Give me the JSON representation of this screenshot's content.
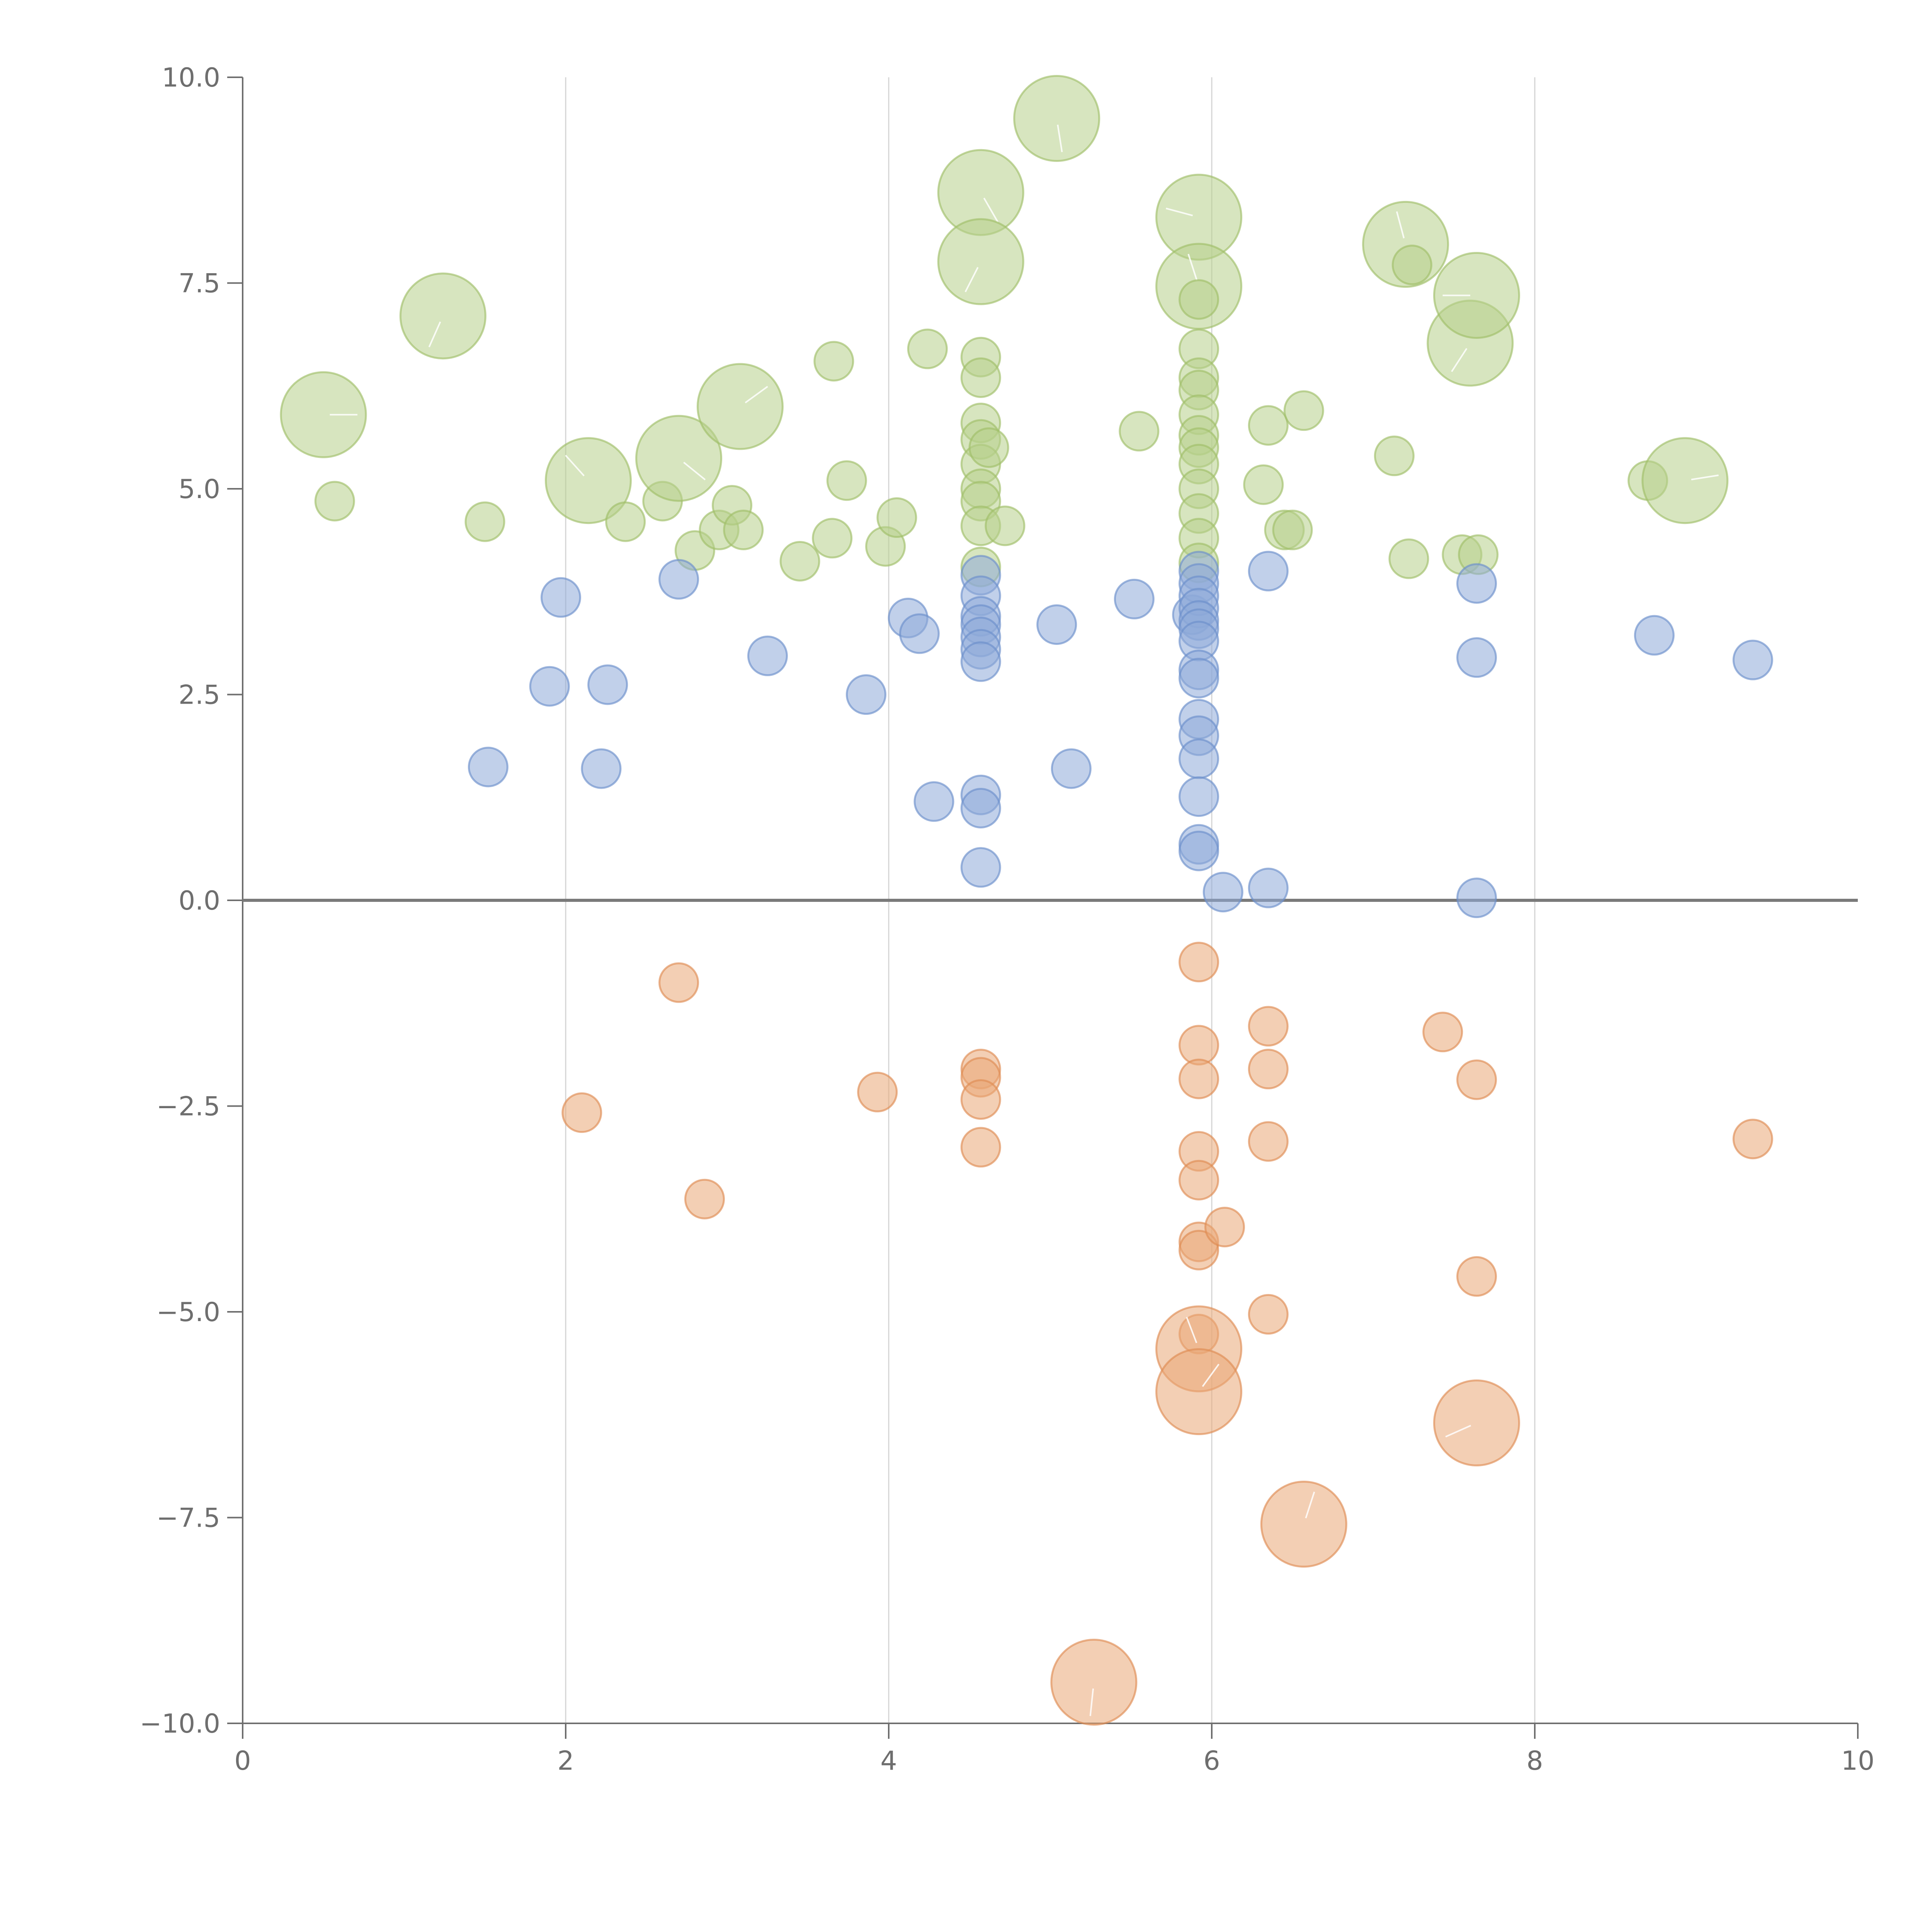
{
  "chart_data": {
    "type": "scatter",
    "variant": "bubble",
    "title": "",
    "xlabel": "",
    "ylabel": "",
    "xlim": [
      0,
      10
    ],
    "ylim": [
      -10,
      10
    ],
    "x_ticks": [
      "0",
      "2",
      "4",
      "6",
      "8",
      "10"
    ],
    "x_tick_values": [
      0,
      2,
      4,
      6,
      8,
      10
    ],
    "y_ticks": [
      "10.0",
      "7.5",
      "5.0",
      "2.5",
      "0.0",
      "−2.5",
      "−5.0",
      "−7.5",
      "−10.0"
    ],
    "y_tick_values": [
      10,
      7.5,
      5,
      2.5,
      0,
      -2.5,
      -5,
      -7.5,
      -10
    ],
    "grid": "vertical",
    "zero_line": true,
    "legend": "none",
    "size_scale": {
      "small": 1,
      "large": 2.2
    },
    "series": [
      {
        "name": "green",
        "color": "#b7cf8a",
        "stroke": "#9fbe68",
        "points": [
          [
            0.5,
            5.9,
            2.2
          ],
          [
            0.57,
            4.85,
            1
          ],
          [
            1.24,
            7.1,
            2.2
          ],
          [
            1.5,
            4.6,
            1
          ],
          [
            2.14,
            5.1,
            2.2
          ],
          [
            2.37,
            4.6,
            1
          ],
          [
            2.6,
            4.85,
            1
          ],
          [
            2.7,
            5.37,
            2.2
          ],
          [
            2.8,
            4.25,
            1
          ],
          [
            2.95,
            4.5,
            1
          ],
          [
            3.03,
            4.8,
            1
          ],
          [
            3.1,
            4.5,
            1
          ],
          [
            3.08,
            6.0,
            2.2
          ],
          [
            3.45,
            4.12,
            1
          ],
          [
            3.65,
            4.4,
            1
          ],
          [
            3.66,
            6.55,
            1
          ],
          [
            3.74,
            5.1,
            1
          ],
          [
            3.98,
            4.3,
            1
          ],
          [
            4.05,
            4.65,
            1
          ],
          [
            4.24,
            6.7,
            1
          ],
          [
            4.57,
            8.6,
            2.2
          ],
          [
            4.57,
            7.76,
            2.2
          ],
          [
            4.57,
            6.6,
            1
          ],
          [
            4.57,
            6.35,
            1
          ],
          [
            4.57,
            5.8,
            1
          ],
          [
            4.57,
            5.6,
            1
          ],
          [
            4.57,
            5.3,
            1
          ],
          [
            4.57,
            5.0,
            1
          ],
          [
            4.57,
            4.85,
            1
          ],
          [
            4.57,
            4.55,
            1
          ],
          [
            4.57,
            4.05,
            1
          ],
          [
            4.62,
            5.5,
            1
          ],
          [
            4.72,
            4.55,
            1
          ],
          [
            5.04,
            9.5,
            2.2
          ],
          [
            5.55,
            5.7,
            1
          ],
          [
            5.92,
            8.3,
            2.2
          ],
          [
            5.92,
            7.46,
            2.2
          ],
          [
            5.92,
            7.3,
            1
          ],
          [
            5.92,
            6.7,
            1
          ],
          [
            5.92,
            6.35,
            1
          ],
          [
            5.92,
            6.2,
            1
          ],
          [
            5.92,
            5.9,
            1
          ],
          [
            5.92,
            5.65,
            1
          ],
          [
            5.92,
            5.5,
            1
          ],
          [
            5.92,
            5.3,
            1
          ],
          [
            5.92,
            5.0,
            1
          ],
          [
            5.92,
            4.7,
            1
          ],
          [
            5.92,
            4.4,
            1
          ],
          [
            5.92,
            4.1,
            1
          ],
          [
            6.32,
            5.05,
            1
          ],
          [
            6.35,
            5.77,
            1
          ],
          [
            6.45,
            4.5,
            1
          ],
          [
            6.5,
            4.5,
            1
          ],
          [
            6.57,
            5.95,
            1
          ],
          [
            7.13,
            5.4,
            1
          ],
          [
            7.2,
            7.97,
            2.2
          ],
          [
            7.22,
            4.15,
            1
          ],
          [
            7.24,
            7.72,
            1
          ],
          [
            7.55,
            4.2,
            1
          ],
          [
            7.6,
            6.77,
            2.2
          ],
          [
            7.64,
            7.35,
            2.2
          ],
          [
            7.65,
            4.2,
            1
          ],
          [
            8.7,
            5.1,
            1
          ],
          [
            8.93,
            5.1,
            2.2
          ]
        ]
      },
      {
        "name": "blue",
        "color": "#8eaad8",
        "stroke": "#6b8fcb",
        "points": [
          [
            1.52,
            1.62,
            1
          ],
          [
            1.9,
            2.6,
            1
          ],
          [
            1.97,
            3.68,
            1
          ],
          [
            2.22,
            1.6,
            1
          ],
          [
            2.26,
            2.62,
            1
          ],
          [
            2.7,
            3.9,
            1
          ],
          [
            3.25,
            2.97,
            1
          ],
          [
            3.86,
            2.5,
            1
          ],
          [
            4.12,
            3.43,
            1
          ],
          [
            4.19,
            3.24,
            1
          ],
          [
            4.28,
            1.2,
            1
          ],
          [
            4.57,
            3.95,
            1
          ],
          [
            4.57,
            3.7,
            1
          ],
          [
            4.57,
            3.45,
            1
          ],
          [
            4.57,
            3.35,
            1
          ],
          [
            4.57,
            3.2,
            1
          ],
          [
            4.57,
            3.05,
            1
          ],
          [
            4.57,
            2.9,
            1
          ],
          [
            4.57,
            1.28,
            1
          ],
          [
            4.57,
            1.12,
            1
          ],
          [
            4.57,
            0.4,
            1
          ],
          [
            5.04,
            3.35,
            1
          ],
          [
            5.13,
            1.6,
            1
          ],
          [
            5.52,
            3.66,
            1
          ],
          [
            5.88,
            3.47,
            1
          ],
          [
            5.92,
            4.0,
            1
          ],
          [
            5.92,
            3.85,
            1
          ],
          [
            5.92,
            3.7,
            1
          ],
          [
            5.92,
            3.55,
            1
          ],
          [
            5.92,
            3.4,
            1
          ],
          [
            5.92,
            3.3,
            1
          ],
          [
            5.92,
            3.15,
            1
          ],
          [
            5.92,
            2.8,
            1
          ],
          [
            5.92,
            2.7,
            1
          ],
          [
            5.92,
            2.2,
            1
          ],
          [
            5.92,
            2.0,
            1
          ],
          [
            5.92,
            1.72,
            1
          ],
          [
            5.92,
            1.26,
            1
          ],
          [
            5.92,
            0.68,
            1
          ],
          [
            5.92,
            0.6,
            1
          ],
          [
            6.07,
            0.1,
            1
          ],
          [
            6.35,
            4.0,
            1
          ],
          [
            6.35,
            0.15,
            1
          ],
          [
            7.64,
            3.85,
            1
          ],
          [
            7.64,
            2.95,
            1
          ],
          [
            7.64,
            0.03,
            1
          ],
          [
            8.74,
            3.22,
            1
          ],
          [
            9.35,
            2.92,
            1
          ]
        ]
      },
      {
        "name": "orange",
        "color": "#e9a877",
        "stroke": "#df8c53",
        "points": [
          [
            2.1,
            -2.58,
            1
          ],
          [
            2.7,
            -1.0,
            1
          ],
          [
            2.86,
            -3.63,
            1
          ],
          [
            3.93,
            -2.33,
            1
          ],
          [
            4.57,
            -2.05,
            1
          ],
          [
            4.57,
            -2.15,
            1
          ],
          [
            4.57,
            -2.42,
            1
          ],
          [
            4.57,
            -3.0,
            1
          ],
          [
            5.27,
            -9.5,
            2.2
          ],
          [
            5.92,
            -0.75,
            1
          ],
          [
            5.92,
            -1.76,
            1
          ],
          [
            5.92,
            -2.17,
            1
          ],
          [
            5.92,
            -3.05,
            1
          ],
          [
            5.92,
            -3.4,
            1
          ],
          [
            5.92,
            -4.15,
            1
          ],
          [
            5.92,
            -4.25,
            1
          ],
          [
            5.92,
            -5.27,
            1
          ],
          [
            5.92,
            -5.45,
            2.2
          ],
          [
            5.92,
            -5.97,
            2.2
          ],
          [
            6.08,
            -3.97,
            1
          ],
          [
            6.35,
            -1.53,
            1
          ],
          [
            6.35,
            -2.05,
            1
          ],
          [
            6.35,
            -2.93,
            1
          ],
          [
            6.35,
            -5.03,
            1
          ],
          [
            6.57,
            -7.58,
            2.2
          ],
          [
            7.43,
            -1.6,
            1
          ],
          [
            7.64,
            -2.18,
            1
          ],
          [
            7.64,
            -4.57,
            1
          ],
          [
            7.64,
            -6.35,
            2.2
          ],
          [
            9.35,
            -2.9,
            1
          ]
        ]
      }
    ]
  }
}
